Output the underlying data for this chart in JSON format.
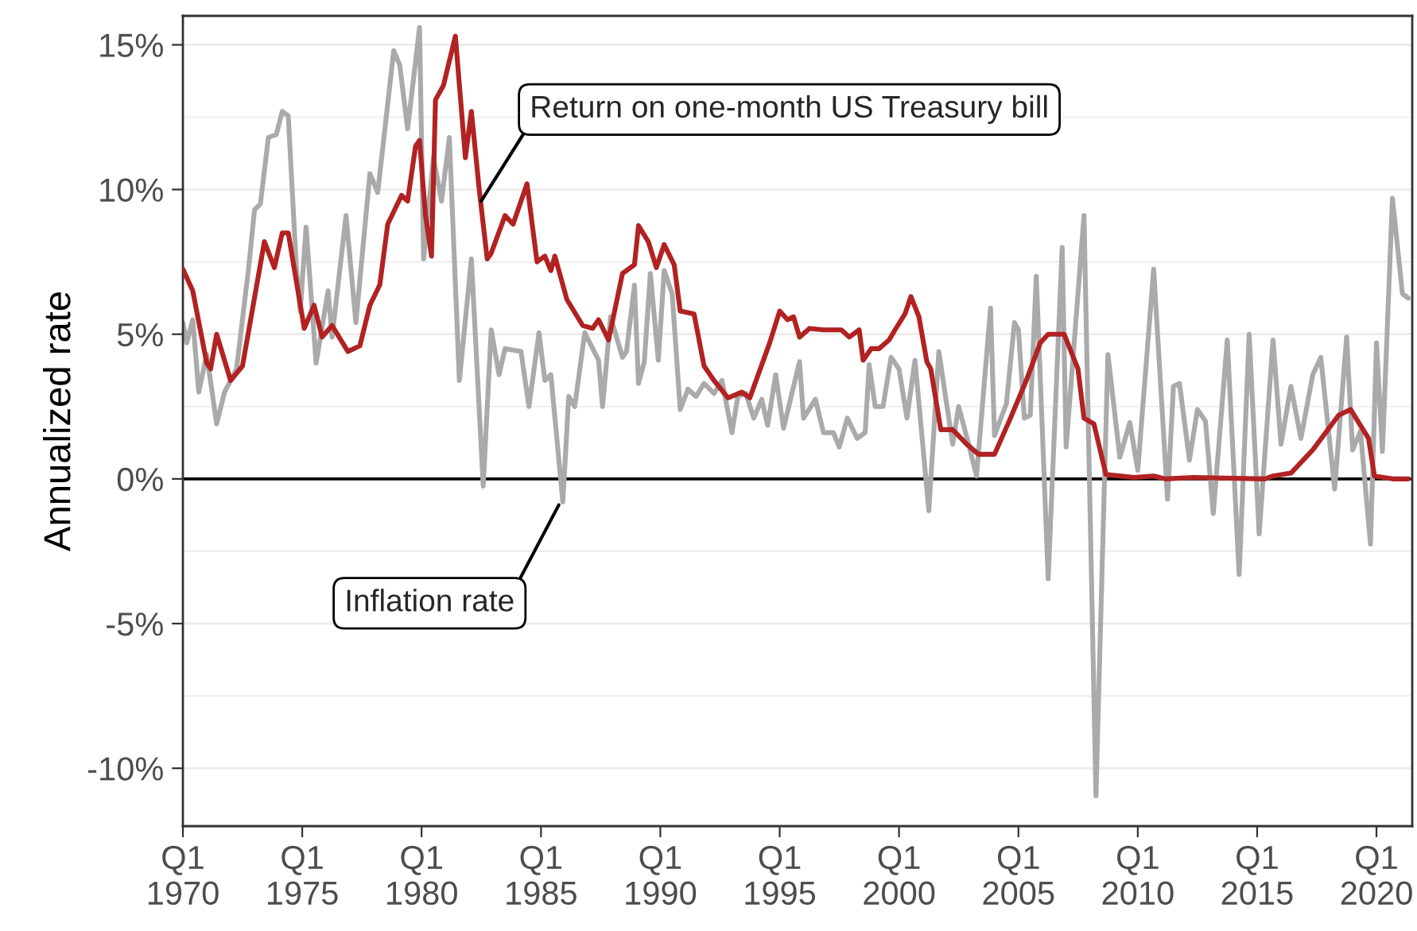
{
  "chart_data": {
    "type": "line",
    "ylabel": "Annualized rate",
    "xlim": [
      "1970-01",
      "2021-07"
    ],
    "ylim": [
      -12,
      16
    ],
    "xticks": [
      {
        "value": "1970-01",
        "label": "Q1\n1970"
      },
      {
        "value": "1975-01",
        "label": "Q1\n1975"
      },
      {
        "value": "1980-01",
        "label": "Q1\n1980"
      },
      {
        "value": "1985-01",
        "label": "Q1\n1985"
      },
      {
        "value": "1990-01",
        "label": "Q1\n1990"
      },
      {
        "value": "1995-01",
        "label": "Q1\n1995"
      },
      {
        "value": "2000-01",
        "label": "Q1\n2000"
      },
      {
        "value": "2005-01",
        "label": "Q1\n2005"
      },
      {
        "value": "2010-01",
        "label": "Q1\n2010"
      },
      {
        "value": "2015-01",
        "label": "Q1\n2015"
      },
      {
        "value": "2020-01",
        "label": "Q1\n2020"
      }
    ],
    "yticks": [
      {
        "value": -10,
        "label": "-10%"
      },
      {
        "value": -5,
        "label": "-5%"
      },
      {
        "value": 0,
        "label": "0%"
      },
      {
        "value": 5,
        "label": "5%"
      },
      {
        "value": 10,
        "label": "10%"
      },
      {
        "value": 15,
        "label": "15%"
      }
    ],
    "grid": "y",
    "ref_lines": [
      {
        "axis": "y",
        "value": 0,
        "color": "#000000"
      }
    ],
    "series": [
      {
        "color": "#aaaaaa",
        "x": [
          "1970-01",
          "1970-03",
          "1970-06",
          "1970-09",
          "1971-01",
          "1971-06",
          "1971-10",
          "1972-04",
          "1972-10",
          "1973-01",
          "1973-04",
          "1973-08",
          "1973-12",
          "1974-03",
          "1974-06",
          "1974-10",
          "1974-12",
          "1975-03",
          "1975-08",
          "1976-02",
          "1976-04",
          "1976-11",
          "1977-04",
          "1977-11",
          "1978-03",
          "1978-11",
          "1979-02",
          "1979-06",
          "1979-12",
          "1980-02",
          "1980-07",
          "1980-11",
          "1981-03",
          "1981-08",
          "1982-02",
          "1982-08",
          "1982-12",
          "1983-04",
          "1983-07",
          "1984-03",
          "1984-07",
          "1984-12",
          "1985-03",
          "1985-06",
          "1985-12",
          "1986-03",
          "1986-06",
          "1986-11",
          "1987-06",
          "1987-08",
          "1987-12",
          "1988-06",
          "1988-08",
          "1988-12",
          "1989-02",
          "1989-05",
          "1989-08",
          "1989-12",
          "1990-03",
          "1990-07",
          "1990-11",
          "1991-03",
          "1991-07",
          "1991-11",
          "1992-04",
          "1992-08",
          "1993-01",
          "1993-04",
          "1993-08",
          "1993-12",
          "1994-04",
          "1994-07",
          "1994-11",
          "1995-03",
          "1995-11",
          "1996-01",
          "1996-07",
          "1996-11",
          "1997-04",
          "1997-07",
          "1997-11",
          "1998-04",
          "1998-08",
          "1998-10",
          "1999-01",
          "1999-05",
          "1999-09",
          "2000-01",
          "2000-05",
          "2000-09",
          "2001-04",
          "2001-09",
          "2002-04",
          "2002-07",
          "2002-12",
          "2003-04",
          "2003-11",
          "2004-01",
          "2004-07",
          "2004-11",
          "2005-01",
          "2005-04",
          "2005-07",
          "2005-10",
          "2006-04",
          "2006-11",
          "2007-01",
          "2007-10",
          "2008-04",
          "2008-10",
          "2009-04",
          "2009-09",
          "2010-01",
          "2010-09",
          "2011-04",
          "2011-07",
          "2011-10",
          "2012-03",
          "2012-07",
          "2012-11",
          "2013-03",
          "2013-10",
          "2014-04",
          "2014-09",
          "2015-02",
          "2015-09",
          "2016-01",
          "2016-06",
          "2016-11",
          "2017-05",
          "2017-09",
          "2018-04",
          "2018-10",
          "2019-01",
          "2019-05",
          "2019-10",
          "2020-01",
          "2020-04",
          "2020-09",
          "2021-02",
          "2021-05"
        ],
        "values": [
          5.4,
          4.7,
          5.5,
          3.0,
          4.3,
          1.9,
          3.0,
          3.8,
          7.25,
          9.3,
          9.5,
          11.8,
          11.9,
          12.7,
          12.55,
          7.4,
          5.8,
          8.7,
          4.0,
          6.5,
          4.9,
          9.1,
          5.4,
          10.55,
          9.9,
          14.8,
          14.3,
          12.1,
          15.6,
          7.6,
          11.1,
          9.6,
          11.8,
          3.4,
          7.6,
          -0.25,
          5.15,
          3.6,
          4.5,
          4.4,
          2.5,
          5.05,
          3.4,
          3.6,
          -0.8,
          2.85,
          2.5,
          5.05,
          4.1,
          2.5,
          5.6,
          4.2,
          4.4,
          6.7,
          3.3,
          4.05,
          7.1,
          4.1,
          7.2,
          6.4,
          2.4,
          3.1,
          2.85,
          3.3,
          2.95,
          3.4,
          1.6,
          2.85,
          2.95,
          2.1,
          2.75,
          1.85,
          3.6,
          1.75,
          4.05,
          2.1,
          2.75,
          1.6,
          1.6,
          1.1,
          2.1,
          1.4,
          1.6,
          3.95,
          2.5,
          2.5,
          4.2,
          3.8,
          2.1,
          4.1,
          -1.1,
          4.4,
          1.2,
          2.5,
          1.2,
          0.1,
          5.9,
          1.5,
          2.6,
          5.4,
          5.15,
          2.1,
          2.2,
          7.0,
          -3.45,
          8.0,
          1.1,
          9.1,
          -10.95,
          4.3,
          0.75,
          1.95,
          0.3,
          7.25,
          -0.7,
          3.2,
          3.3,
          0.65,
          2.4,
          2.0,
          -1.2,
          4.8,
          -3.3,
          5.0,
          -1.9,
          4.8,
          1.2,
          3.2,
          1.4,
          3.6,
          4.2,
          -0.35,
          4.9,
          1.0,
          1.65,
          -2.25,
          4.7,
          0.95,
          9.7,
          6.4,
          6.25
        ]
      },
      {
        "color": "#b22222",
        "x": [
          "1970-01",
          "1970-06",
          "1971-01",
          "1971-03",
          "1971-06",
          "1972-01",
          "1972-07",
          "1973-06",
          "1973-11",
          "1974-03",
          "1974-06",
          "1975-02",
          "1975-07",
          "1975-11",
          "1976-04",
          "1976-12",
          "1977-06",
          "1977-11",
          "1978-04",
          "1978-08",
          "1979-03",
          "1979-06",
          "1979-10",
          "1979-12",
          "1980-03",
          "1980-06",
          "1980-08",
          "1980-12",
          "1981-06",
          "1981-11",
          "1982-02",
          "1982-06",
          "1982-10",
          "1982-12",
          "1983-07",
          "1983-11",
          "1984-06",
          "1984-11",
          "1985-03",
          "1985-06",
          "1985-08",
          "1986-02",
          "1986-10",
          "1987-03",
          "1987-06",
          "1987-11",
          "1988-06",
          "1988-12",
          "1989-02",
          "1989-07",
          "1989-11",
          "1990-03",
          "1990-08",
          "1990-11",
          "1991-06",
          "1991-11",
          "1992-04",
          "1992-11",
          "1993-06",
          "1993-10",
          "1994-08",
          "1995-01",
          "1995-05",
          "1995-08",
          "1995-11",
          "1996-04",
          "1996-11",
          "1997-08",
          "1997-12",
          "1998-05",
          "1998-07",
          "1998-11",
          "1999-03",
          "1999-08",
          "1999-11",
          "2000-04",
          "2000-07",
          "2000-11",
          "2001-03",
          "2001-05",
          "2001-10",
          "2002-04",
          "2002-11",
          "2003-05",
          "2004-01",
          "2004-09",
          "2005-05",
          "2005-12",
          "2006-04",
          "2006-12",
          "2007-07",
          "2007-10",
          "2008-03",
          "2008-09",
          "2009-11",
          "2010-09",
          "2011-03",
          "2012-05",
          "2015-05",
          "2015-09",
          "2016-06",
          "2017-05",
          "2018-06",
          "2018-12",
          "2019-09",
          "2019-12",
          "2020-09",
          "2021-05"
        ],
        "values": [
          7.25,
          6.5,
          4.0,
          3.8,
          5.0,
          3.4,
          3.9,
          8.2,
          7.3,
          8.5,
          8.5,
          5.2,
          6.0,
          4.9,
          5.3,
          4.4,
          4.6,
          6.0,
          6.7,
          8.8,
          9.8,
          9.6,
          11.5,
          11.7,
          9.1,
          7.7,
          13.1,
          13.6,
          15.3,
          11.1,
          12.7,
          10.0,
          7.6,
          7.8,
          9.1,
          8.8,
          10.2,
          7.5,
          7.7,
          7.2,
          7.7,
          6.2,
          5.3,
          5.2,
          5.5,
          4.8,
          7.1,
          7.4,
          8.75,
          8.2,
          7.3,
          8.1,
          7.4,
          5.8,
          5.7,
          3.9,
          3.4,
          2.8,
          3.0,
          2.8,
          4.7,
          5.8,
          5.5,
          5.6,
          4.9,
          5.2,
          5.15,
          5.15,
          4.9,
          5.15,
          4.1,
          4.5,
          4.5,
          4.8,
          5.15,
          5.7,
          6.3,
          5.6,
          4.05,
          3.8,
          1.7,
          1.7,
          1.2,
          0.85,
          0.85,
          2.1,
          3.4,
          4.7,
          5.0,
          5.0,
          3.8,
          2.1,
          1.9,
          0.15,
          0.05,
          0.1,
          0.0,
          0.05,
          0.0,
          0.1,
          0.2,
          1.0,
          2.2,
          2.4,
          1.4,
          0.1,
          0.0,
          0.0
        ]
      }
    ],
    "annotations": [
      {
        "text": "Return on one-month US Treasury bill",
        "x": "1982-07",
        "y": 9.6
      },
      {
        "text": "Inflation rate",
        "x": "1985-10",
        "y": -0.9
      }
    ]
  }
}
